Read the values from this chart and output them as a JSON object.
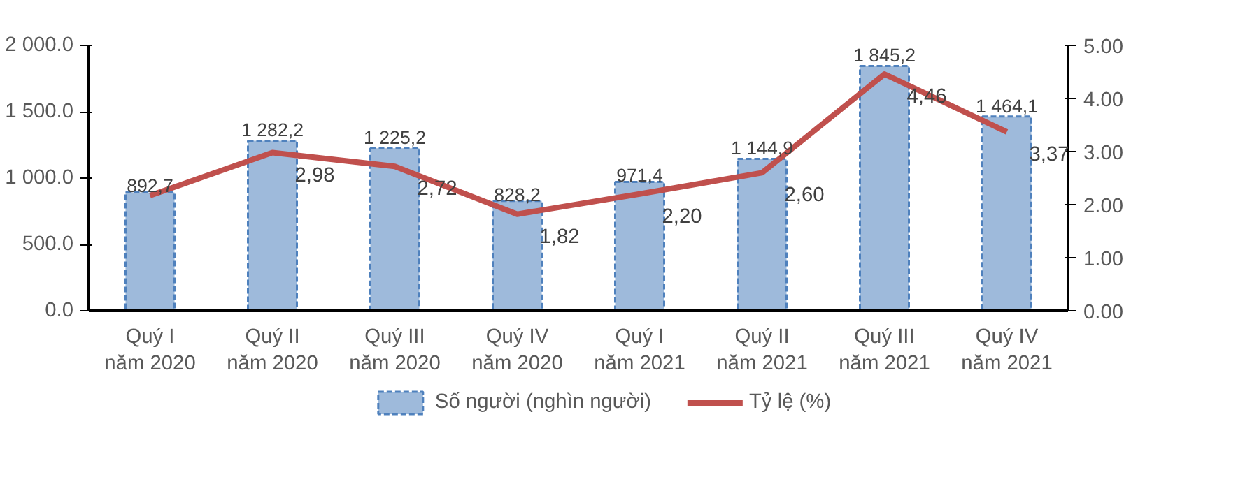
{
  "chart_data": {
    "type": "bar",
    "categories": [
      "Quý I\nnăm 2020",
      "Quý II\nnăm 2020",
      "Quý III\nnăm 2020",
      "Quý IV\nnăm 2020",
      "Quý I\nnăm 2021",
      "Quý II\nnăm 2021",
      "Quý III\nnăm 2021",
      "Quý IV\nnăm 2021"
    ],
    "series": [
      {
        "name": "Số người (nghìn người)",
        "type": "bar",
        "color": "#4f81bd",
        "values": [
          892.7,
          1282.2,
          1225.2,
          828.2,
          971.4,
          1144.9,
          1845.2,
          1464.1
        ],
        "value_labels": [
          "892,7",
          "1 282,2",
          "1 225,2",
          "828,2",
          "971,4",
          "1 144,9",
          "1 845,2",
          "1 464,1"
        ]
      },
      {
        "name": "Tỷ lệ (%)",
        "type": "line",
        "axis": "y2",
        "color": "#c0504d",
        "values": [
          2.17,
          2.98,
          2.72,
          1.82,
          2.2,
          2.6,
          4.46,
          3.37
        ],
        "value_labels": [
          null,
          "2,98",
          "2,72",
          "1,82",
          "2,20",
          "2,60",
          "4,46",
          "3,37"
        ]
      }
    ],
    "ylim": [
      0,
      2000
    ],
    "yticks": [
      {
        "value": 0,
        "label": "0.0"
      },
      {
        "value": 500,
        "label": "500.0"
      },
      {
        "value": 1000,
        "label": "1 000.0"
      },
      {
        "value": 1500,
        "label": "1 500.0"
      },
      {
        "value": 2000,
        "label": "2 000.0"
      }
    ],
    "y2lim": [
      0,
      5
    ],
    "y2ticks": [
      {
        "value": 0,
        "label": "0.00"
      },
      {
        "value": 1,
        "label": "1.00"
      },
      {
        "value": 2,
        "label": "2.00"
      },
      {
        "value": 3,
        "label": "3.00"
      },
      {
        "value": 4,
        "label": "4.00"
      },
      {
        "value": 5,
        "label": "5.00"
      }
    ],
    "grid": false,
    "legend": "bottom"
  }
}
